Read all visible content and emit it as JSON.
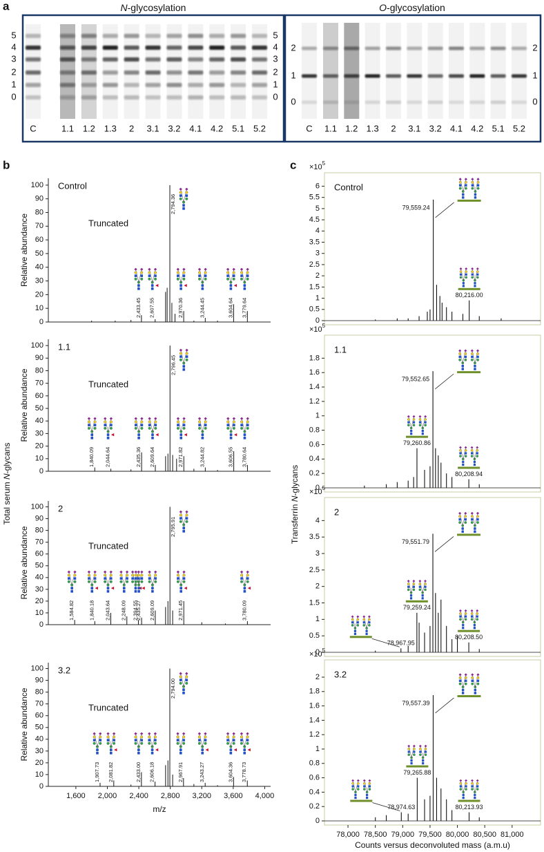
{
  "panel_labels": [
    "a",
    "b",
    "c"
  ],
  "shared_labels": [
    {
      "pre": "Total serum ",
      "italic": "N",
      "post": "-glycans"
    },
    {
      "pre": "Transferrin ",
      "italic": "N",
      "post": "-glycans"
    }
  ],
  "gels": [
    {
      "title": {
        "italic": "N",
        "rest": "-glycosylation"
      },
      "lanes": [
        "C",
        "1.1",
        "1.2",
        "1.3",
        "2",
        "3.1",
        "3.2",
        "4.1",
        "4.2",
        "5.1",
        "5.2"
      ],
      "left_labels": [
        "5",
        "4",
        "3",
        "2",
        "1",
        "0"
      ],
      "right_labels": [
        "5",
        "4",
        "3",
        "2",
        "1",
        "0"
      ]
    },
    {
      "title": {
        "italic": "O",
        "rest": "-glycosylation"
      },
      "lanes": [
        "C",
        "1.1",
        "1.2",
        "1.3",
        "2",
        "3.1",
        "3.2",
        "4.1",
        "4.2",
        "5.1",
        "5.2"
      ],
      "left_labels": [
        "2",
        "1",
        "0"
      ],
      "right_labels": [
        "2",
        "1",
        "0"
      ]
    }
  ],
  "chart_data": [
    {
      "type": "spectrum",
      "annotations": [
        "Control",
        "Truncated"
      ],
      "ylabel": "Relative abundance",
      "color": "#111111",
      "xlim": [
        1250,
        4075
      ],
      "ylim": [
        0,
        105
      ],
      "yticks": [
        0,
        10,
        20,
        30,
        40,
        50,
        60,
        70,
        80,
        90,
        100
      ],
      "x": [
        1800,
        2100,
        2300,
        2433.45,
        2607.55,
        2740,
        2760,
        2794.36,
        2820,
        2860,
        2970.36,
        3100,
        3244.45,
        3400,
        3604.64,
        3779.64
      ],
      "values": [
        1,
        1,
        1.5,
        5,
        2,
        22,
        25,
        100,
        14,
        6,
        8,
        1,
        3,
        1,
        13,
        8
      ],
      "x_labels": [
        null,
        null,
        null,
        "2,433.45",
        "2,607.55",
        null,
        null,
        "2,794.36",
        null,
        null,
        "2,970.36",
        null,
        "3,244.45",
        null,
        "3,604.64",
        "3,779.64"
      ]
    },
    {
      "type": "spectrum",
      "annotations": [
        "1.1",
        "Truncated"
      ],
      "ylabel": "Relative abundance",
      "color": "#111111",
      "xlim": [
        1250,
        4075
      ],
      "ylim": [
        0,
        105
      ],
      "yticks": [
        0,
        10,
        20,
        30,
        40,
        50,
        60,
        70,
        80,
        90,
        100
      ],
      "x": [
        1840.09,
        2044.64,
        2300,
        2435.36,
        2609.64,
        2740,
        2770,
        2796.45,
        2830,
        2880,
        2971.82,
        3100,
        3244.82,
        3400,
        3606.55,
        3780.64
      ],
      "values": [
        3,
        2,
        1.5,
        15,
        5,
        12,
        14,
        100,
        13,
        10,
        12,
        2,
        3,
        1,
        16,
        5
      ],
      "x_labels": [
        "1,840.09",
        "2,044.64",
        null,
        "2,435.36",
        "2,609.64",
        null,
        null,
        "2,796.45",
        null,
        null,
        "2,971.82",
        null,
        "3,244.82",
        null,
        "3,606.55",
        "3,780.64"
      ]
    },
    {
      "type": "spectrum",
      "annotations": [
        "2",
        "Truncated"
      ],
      "ylabel": "Relative abundance",
      "color": "#111111",
      "xlim": [
        1250,
        4075
      ],
      "ylim": [
        0,
        105
      ],
      "yticks": [
        0,
        10,
        20,
        30,
        40,
        50,
        60,
        70,
        80,
        90,
        100
      ],
      "x": [
        1584.82,
        1840.18,
        2043.64,
        2248.09,
        2394.55,
        2435.27,
        2609.09,
        2740,
        2770,
        2795.91,
        2830,
        2971.45,
        3200,
        3500,
        3780.09
      ],
      "values": [
        4,
        3,
        10,
        7,
        4,
        6,
        12,
        15,
        20,
        100,
        12,
        20,
        2,
        1,
        3
      ],
      "x_labels": [
        "1,584.82",
        "1,840.18",
        "2,043.64",
        "2,248.09",
        "2,394.55",
        "2,435.27",
        "2,609.09",
        null,
        null,
        "2,795.91",
        null,
        "2,971.45",
        null,
        null,
        "3,780.09"
      ]
    },
    {
      "type": "spectrum",
      "annotations": [
        "3.2",
        "Truncated"
      ],
      "ylabel": "Relative abundance",
      "xlabel": "m/z",
      "color": "#111111",
      "xlim": [
        1250,
        4075
      ],
      "ylim": [
        0,
        105
      ],
      "yticks": [
        0,
        10,
        20,
        30,
        40,
        50,
        60,
        70,
        80,
        90,
        100
      ],
      "xticks": [
        {
          "value": 1600,
          "label": "1,600"
        },
        {
          "value": 2000,
          "label": "2,000"
        },
        {
          "value": 2400,
          "label": "2,400"
        },
        {
          "value": 2800,
          "label": "2,800"
        },
        {
          "value": 3200,
          "label": "3,200"
        },
        {
          "value": 3600,
          "label": "3,600"
        },
        {
          "value": 4000,
          "label": "4,000"
        }
      ],
      "x": [
        1907.73,
        2081.82,
        2300,
        2433.0,
        2606.18,
        2740,
        2770,
        2794.0,
        2830,
        2967.91,
        3100,
        3243.27,
        3400,
        3604.36,
        3778.73
      ],
      "values": [
        3,
        5,
        1.5,
        12,
        4,
        18,
        22,
        100,
        10,
        7,
        2,
        3,
        1,
        8,
        5
      ],
      "x_labels": [
        "1,907.73",
        "2,081.82",
        null,
        "2,433.00",
        "2,606.18",
        null,
        null,
        "2,794.00",
        null,
        "2,967.91",
        null,
        "3,243.27",
        null,
        "3,604.36",
        "3,778.73"
      ]
    },
    {
      "type": "spectrum",
      "annotations": [
        "Control"
      ],
      "y_multiplier": {
        "base": "×10",
        "exponent": "5"
      },
      "color": "#111111",
      "xlim": [
        77570,
        81520
      ],
      "ylim": [
        0,
        6.6
      ],
      "yticks": [
        0,
        0.5,
        1,
        1.5,
        2,
        2.5,
        3,
        3.5,
        4,
        4.5,
        5,
        5.5,
        6
      ],
      "x": [
        78500,
        78900,
        79100,
        79300,
        79450,
        79500,
        79559.24,
        79620,
        79680,
        79720,
        79800,
        79900,
        80100,
        80216.0,
        80400,
        80800
      ],
      "values": [
        0.05,
        0.1,
        0.1,
        0.2,
        0.4,
        0.5,
        5.4,
        1.6,
        1.1,
        0.8,
        0.6,
        0.4,
        0.3,
        0.9,
        0.2,
        0.1
      ],
      "x_labels": [
        null,
        null,
        null,
        null,
        null,
        null,
        "79,559.24",
        null,
        null,
        null,
        null,
        null,
        null,
        "80,216.00",
        null,
        null
      ]
    },
    {
      "type": "spectrum",
      "annotations": [
        "1.1"
      ],
      "y_multiplier": {
        "base": "×10",
        "exponent": "5"
      },
      "color": "#111111",
      "xlim": [
        77570,
        81520
      ],
      "ylim": [
        0,
        2.12
      ],
      "yticks": [
        0,
        0.2,
        0.4,
        0.6,
        0.8,
        1,
        1.2,
        1.4,
        1.6,
        1.8
      ],
      "x": [
        78300,
        78700,
        78900,
        79100,
        79200,
        79260.86,
        79400,
        79500,
        79552.65,
        79600,
        79650,
        79700,
        79800,
        79900,
        80208.94,
        80400
      ],
      "values": [
        0.03,
        0.05,
        0.08,
        0.1,
        0.15,
        0.55,
        0.25,
        0.3,
        1.62,
        0.55,
        0.45,
        0.35,
        0.2,
        0.15,
        0.12,
        0.05
      ],
      "x_labels": [
        null,
        null,
        null,
        null,
        null,
        "79,260.86",
        null,
        null,
        "79,552.65",
        null,
        null,
        null,
        null,
        null,
        "80,208.94",
        null
      ]
    },
    {
      "type": "spectrum",
      "annotations": [
        "2"
      ],
      "y_multiplier": {
        "base": "×10",
        "exponent": "5"
      },
      "color": "#111111",
      "xlim": [
        77570,
        81520
      ],
      "ylim": [
        0,
        4.7
      ],
      "yticks": [
        0,
        0.5,
        1,
        1.5,
        2,
        2.5,
        3,
        3.5,
        4
      ],
      "x": [
        78500,
        78967.95,
        79100,
        79259.24,
        79300,
        79400,
        79500,
        79551.79,
        79600,
        79650,
        79700,
        79800,
        79900,
        80000,
        80208.5,
        80400
      ],
      "values": [
        0.05,
        0.12,
        0.2,
        1.2,
        0.9,
        0.6,
        0.8,
        3.6,
        1.8,
        1.2,
        1.6,
        0.8,
        0.4,
        0.5,
        0.3,
        0.1
      ],
      "x_labels": [
        null,
        "78,967.95",
        null,
        "79,259.24",
        null,
        null,
        null,
        "79,551.79",
        null,
        null,
        null,
        null,
        null,
        null,
        "80,208.50",
        null
      ]
    },
    {
      "type": "spectrum",
      "annotations": [
        "3.2"
      ],
      "y_multiplier": {
        "base": "×10",
        "exponent": "5"
      },
      "xlabel": "Counts versus deconvoluted mass (a.m.u)",
      "color": "#111111",
      "xlim": [
        77570,
        81520
      ],
      "ylim": [
        0,
        2.24
      ],
      "yticks": [
        0,
        0.2,
        0.4,
        0.6,
        0.8,
        1,
        1.2,
        1.4,
        1.6,
        1.8,
        2
      ],
      "xticks": [
        {
          "value": 78000,
          "label": "78,000"
        },
        {
          "value": 78500,
          "label": "78,500"
        },
        {
          "value": 79000,
          "label": "79,000"
        },
        {
          "value": 79500,
          "label": "79,500"
        },
        {
          "value": 80000,
          "label": "80,000"
        },
        {
          "value": 80500,
          "label": "80,500"
        },
        {
          "value": 81000,
          "label": "81,000"
        }
      ],
      "x": [
        78500,
        78700,
        78974.63,
        79100,
        79265.88,
        79400,
        79500,
        79557.39,
        79620,
        79700,
        79800,
        79900,
        80213.93,
        80400
      ],
      "values": [
        0.05,
        0.08,
        0.12,
        0.1,
        0.6,
        0.3,
        0.35,
        1.75,
        0.6,
        0.45,
        0.3,
        0.15,
        0.12,
        0.05
      ],
      "x_labels": [
        null,
        null,
        "78,974.63",
        null,
        "79,265.88",
        null,
        null,
        "79,557.39",
        null,
        null,
        null,
        null,
        "80,213.93",
        null
      ]
    }
  ]
}
